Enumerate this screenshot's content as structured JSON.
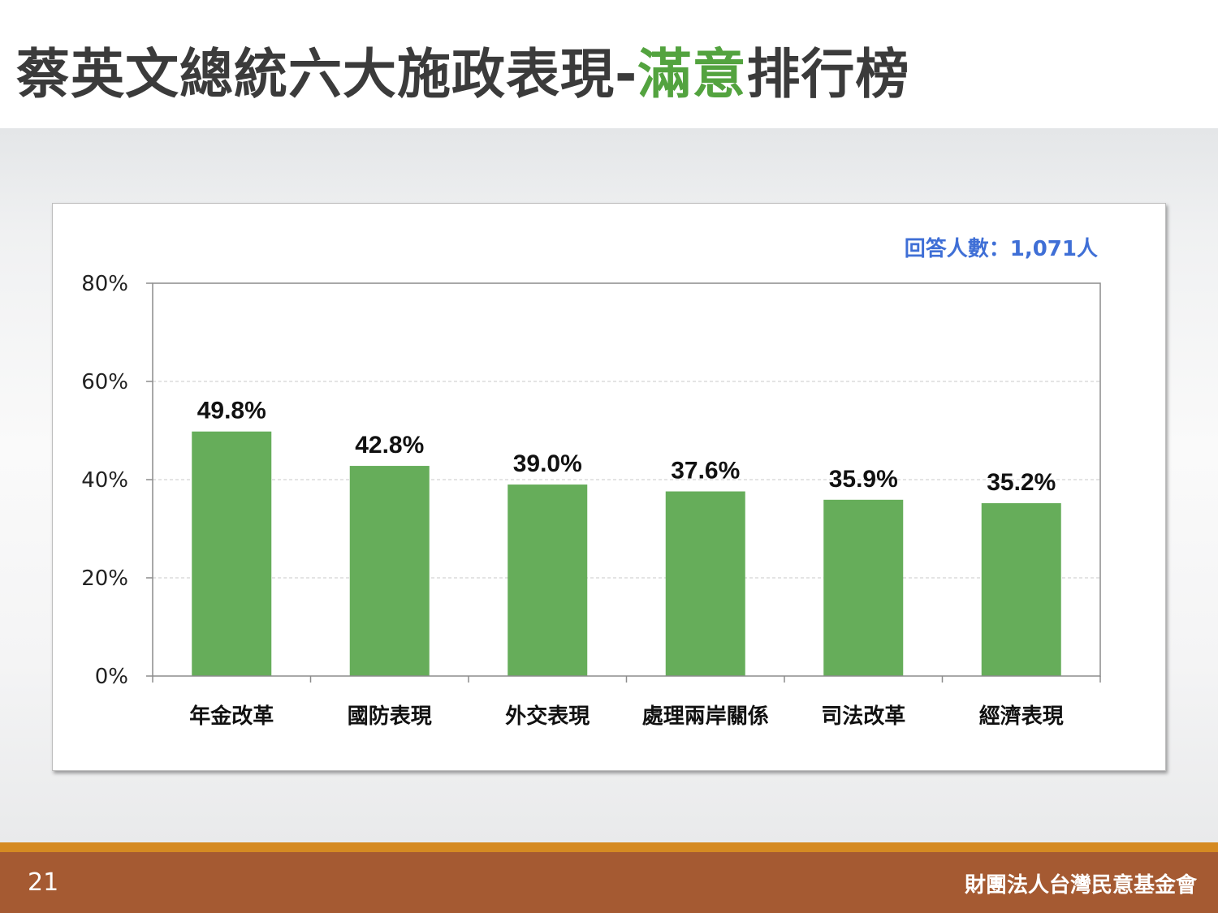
{
  "slide": {
    "title_before": "蔡英文總統六大施政表現-",
    "title_highlight": "滿意",
    "title_after": "排行榜",
    "page_number": "21",
    "organization": "財團法人台灣民意基金會"
  },
  "colors": {
    "bar": "#66ad5a",
    "highlight": "#53a33f",
    "note": "#3f6fd6",
    "footer_top": "#d58a22",
    "footer_main": "#a55a32"
  },
  "chart_data": {
    "type": "bar",
    "categories": [
      "年金改革",
      "國防表現",
      "外交表現",
      "處理兩岸關係",
      "司法改革",
      "經濟表現"
    ],
    "values": [
      49.8,
      42.8,
      39.0,
      37.6,
      35.9,
      35.2
    ],
    "value_labels": [
      "49.8%",
      "42.8%",
      "39.0%",
      "37.6%",
      "35.9%",
      "35.2%"
    ],
    "ylim": [
      0,
      80
    ],
    "yticks": [
      0,
      20,
      40,
      60,
      80
    ],
    "ytick_labels": [
      "0%",
      "20%",
      "40%",
      "60%",
      "80%"
    ],
    "annotation": "回答人數：1,071人",
    "grid": true,
    "title": "",
    "xlabel": "",
    "ylabel": ""
  }
}
